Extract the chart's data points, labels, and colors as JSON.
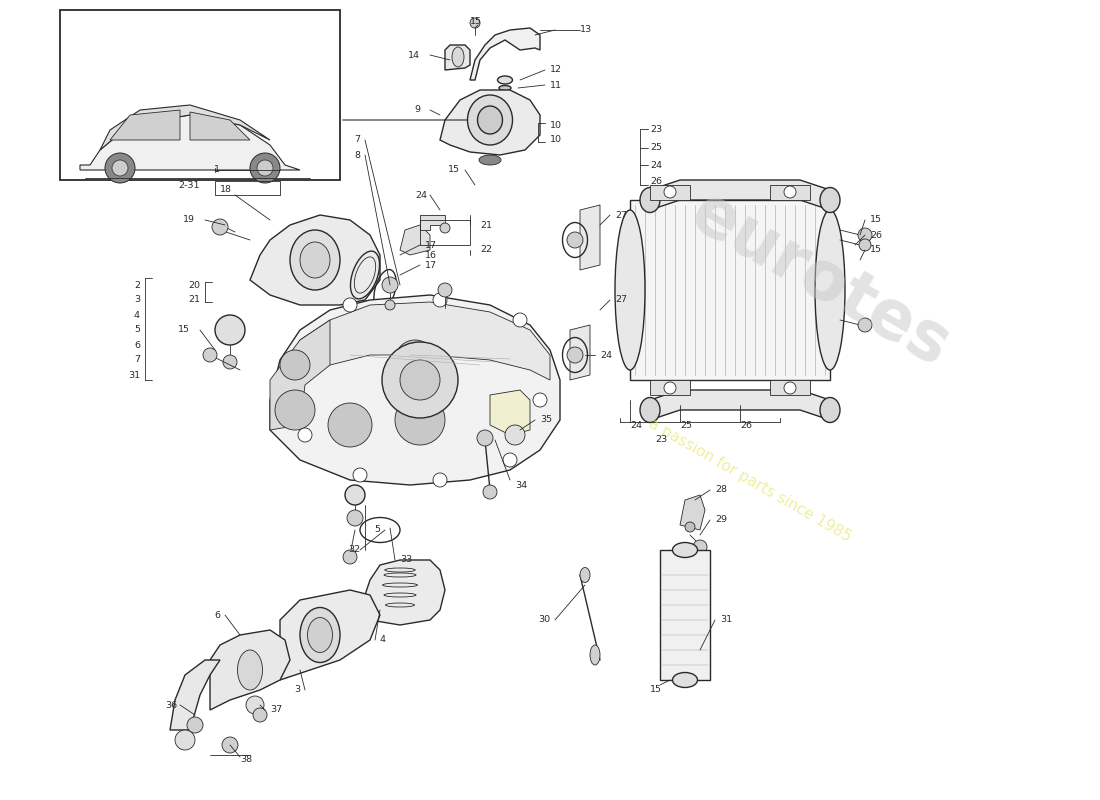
{
  "bg_color": "#ffffff",
  "line_color": "#2a2a2a",
  "watermark1": "eurotes",
  "watermark2": "a passion for parts since 1985",
  "wm_color": "#c8c8c8",
  "wm_yellow": "#e8e87a",
  "fig_w": 11.0,
  "fig_h": 8.0
}
